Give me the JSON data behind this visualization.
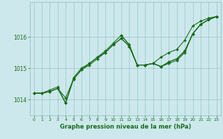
{
  "title": "Graphe pression niveau de la mer (hPa)",
  "background_color": "#cce8ec",
  "plot_bg_color": "#cce8ec",
  "line_color": "#1a6b1a",
  "marker_color": "#1a6b1a",
  "grid_color": "#88bbbb",
  "tick_label_color": "#1a6b1a",
  "title_color": "#1a6b1a",
  "xlim": [
    -0.5,
    23.5
  ],
  "ylim": [
    1013.5,
    1017.1
  ],
  "yticks": [
    1014,
    1015,
    1016
  ],
  "xticks": [
    0,
    1,
    2,
    3,
    4,
    5,
    6,
    7,
    8,
    9,
    10,
    11,
    12,
    13,
    14,
    15,
    16,
    17,
    18,
    19,
    20,
    21,
    22,
    23
  ],
  "figsize": [
    3.2,
    2.0
  ],
  "dpi": 100,
  "lw": 0.8,
  "ms": 2.0,
  "series1": {
    "x": [
      0,
      1,
      2,
      3,
      4,
      5,
      6,
      7,
      8,
      9,
      10,
      11,
      12,
      13,
      14,
      15,
      16,
      17,
      18,
      19,
      20,
      21,
      22,
      23
    ],
    "y": [
      1014.2,
      1014.2,
      1014.3,
      1014.4,
      1013.88,
      1014.7,
      1015.0,
      1015.15,
      1015.35,
      1015.55,
      1015.8,
      1016.05,
      1015.75,
      1015.1,
      1015.1,
      1015.15,
      1015.05,
      1015.2,
      1015.3,
      1015.55,
      1016.1,
      1016.4,
      1016.55,
      1016.65
    ]
  },
  "series2": {
    "x": [
      0,
      1,
      2,
      3,
      4,
      5,
      6,
      7,
      8,
      9,
      10,
      11,
      12,
      13,
      14,
      15,
      16,
      17,
      18,
      19,
      20,
      21,
      22,
      23
    ],
    "y": [
      1014.2,
      1014.2,
      1014.25,
      1014.35,
      1014.05,
      1014.65,
      1014.95,
      1015.15,
      1015.35,
      1015.5,
      1015.75,
      1015.95,
      1015.7,
      1015.1,
      1015.1,
      1015.15,
      1015.05,
      1015.2,
      1015.3,
      1015.55,
      1016.1,
      1016.4,
      1016.55,
      1016.65
    ]
  },
  "series3": {
    "x": [
      11,
      12,
      13,
      14,
      15,
      16,
      17,
      18,
      19,
      20,
      21,
      22,
      23
    ],
    "y": [
      1016.05,
      1015.75,
      1015.1,
      1015.1,
      1015.15,
      1015.35,
      1015.5,
      1015.6,
      1015.9,
      1016.35,
      1016.5,
      1016.6,
      1016.65
    ]
  },
  "series4": {
    "x": [
      0,
      1,
      2,
      3,
      4,
      5,
      6,
      7,
      8,
      9,
      10,
      11,
      12,
      13,
      14,
      15,
      16,
      17,
      18,
      19,
      20,
      21,
      22,
      23
    ],
    "y": [
      1014.2,
      1014.2,
      1014.25,
      1014.35,
      1013.88,
      1014.65,
      1014.95,
      1015.1,
      1015.3,
      1015.5,
      1015.75,
      1015.95,
      1015.7,
      1015.1,
      1015.1,
      1015.15,
      1015.05,
      1015.15,
      1015.25,
      1015.5,
      1016.1,
      1016.4,
      1016.55,
      1016.65
    ]
  }
}
